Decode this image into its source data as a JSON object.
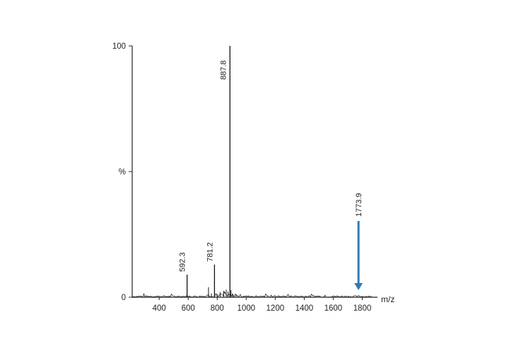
{
  "chart_data": {
    "type": "bar",
    "title": "",
    "xlabel": "m/z",
    "ylabel": "%",
    "xlim": [
      214,
      1905
    ],
    "ylim": [
      0,
      100
    ],
    "x_ticks": [
      400,
      600,
      800,
      1000,
      1200,
      1400,
      1600,
      1800
    ],
    "y_ticks": [
      {
        "value": 0,
        "label": "0"
      },
      {
        "value": 50,
        "label": "%"
      },
      {
        "value": 100,
        "label": "100"
      }
    ],
    "peaks": [
      {
        "mz": 592.3,
        "intensity": 9,
        "label": "592.3"
      },
      {
        "mz": 781.2,
        "intensity": 13,
        "label": "781.2"
      },
      {
        "mz": 887.8,
        "intensity": 100,
        "label": "887.8"
      },
      {
        "mz": 1773.9,
        "intensity": 0.8,
        "label": "1773.9"
      }
    ],
    "minor_peaks": [
      {
        "mz": 740,
        "intensity": 4
      },
      {
        "mz": 760,
        "intensity": 1.5
      },
      {
        "mz": 800,
        "intensity": 1.2
      },
      {
        "mz": 820,
        "intensity": 2
      },
      {
        "mz": 845,
        "intensity": 2.5
      },
      {
        "mz": 862,
        "intensity": 3
      },
      {
        "mz": 875,
        "intensity": 2.2
      },
      {
        "mz": 895,
        "intensity": 2.8
      },
      {
        "mz": 905,
        "intensity": 1.5
      },
      {
        "mz": 930,
        "intensity": 1.2
      }
    ],
    "annotation": {
      "label": "1773.9",
      "mz": 1773.9,
      "arrow_color": "#2f7bb5",
      "direction": "down"
    },
    "colors": {
      "trace": "#111111",
      "axis": "#222222",
      "arrow": "#2f7bb5"
    }
  }
}
